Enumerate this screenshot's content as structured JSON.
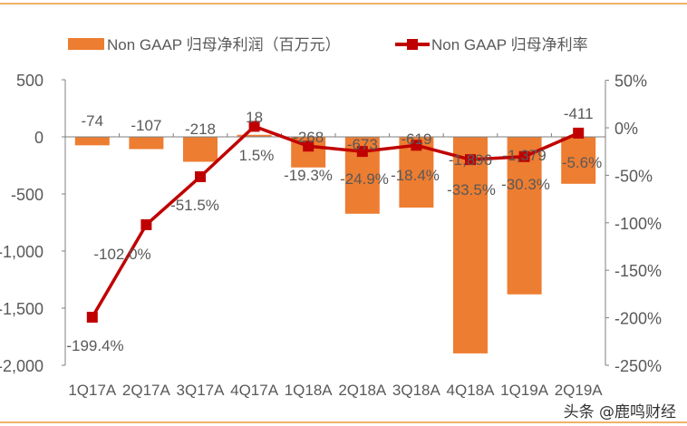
{
  "chart_data": {
    "type": "bar+line",
    "categories": [
      "1Q17A",
      "2Q17A",
      "3Q17A",
      "4Q17A",
      "1Q18A",
      "2Q18A",
      "3Q18A",
      "4Q18A",
      "1Q19A",
      "2Q19A"
    ],
    "series": [
      {
        "name": "Non GAAP 归母净利润（百万元）",
        "type": "bar",
        "axis": "left",
        "color": "#ED7D31",
        "values": [
          -74,
          -107,
          -218,
          18,
          -268,
          -673,
          -619,
          -1896,
          -1379,
          -411
        ],
        "labels": [
          "-74",
          "-107",
          "-218",
          "18",
          "-268",
          "-673",
          "-619",
          "-1,896",
          "-1,379",
          "-411"
        ]
      },
      {
        "name": "Non GAAP 归母净利率",
        "type": "line",
        "axis": "right",
        "color": "#C00000",
        "values": [
          -199.4,
          -102.0,
          -51.5,
          1.5,
          -19.3,
          -24.9,
          -18.4,
          -33.5,
          -30.3,
          -5.6
        ],
        "labels": [
          "-199.4%",
          "-102.0%",
          "-51.5%",
          "1.5%",
          "-19.3%",
          "-24.9%",
          "-18.4%",
          "-33.5%",
          "-30.3%",
          "-5.6%"
        ]
      }
    ],
    "y_left": {
      "range": [
        -2000,
        500
      ],
      "ticks": [
        "500",
        "0",
        "-500",
        "-1,000",
        "-1,500",
        "-2,000"
      ],
      "tick_values": [
        500,
        0,
        -500,
        -1000,
        -1500,
        -2000
      ]
    },
    "y_right": {
      "range": [
        -250,
        50
      ],
      "ticks": [
        "50%",
        "0%",
        "-50%",
        "-100%",
        "-150%",
        "-200%",
        "-250%"
      ],
      "tick_values": [
        50,
        0,
        -50,
        -100,
        -150,
        -200,
        -250
      ]
    },
    "grid": false,
    "legend_placement": "top"
  },
  "watermark": "头条 @鹿鸣财经",
  "frame_color": "#F0B26A"
}
